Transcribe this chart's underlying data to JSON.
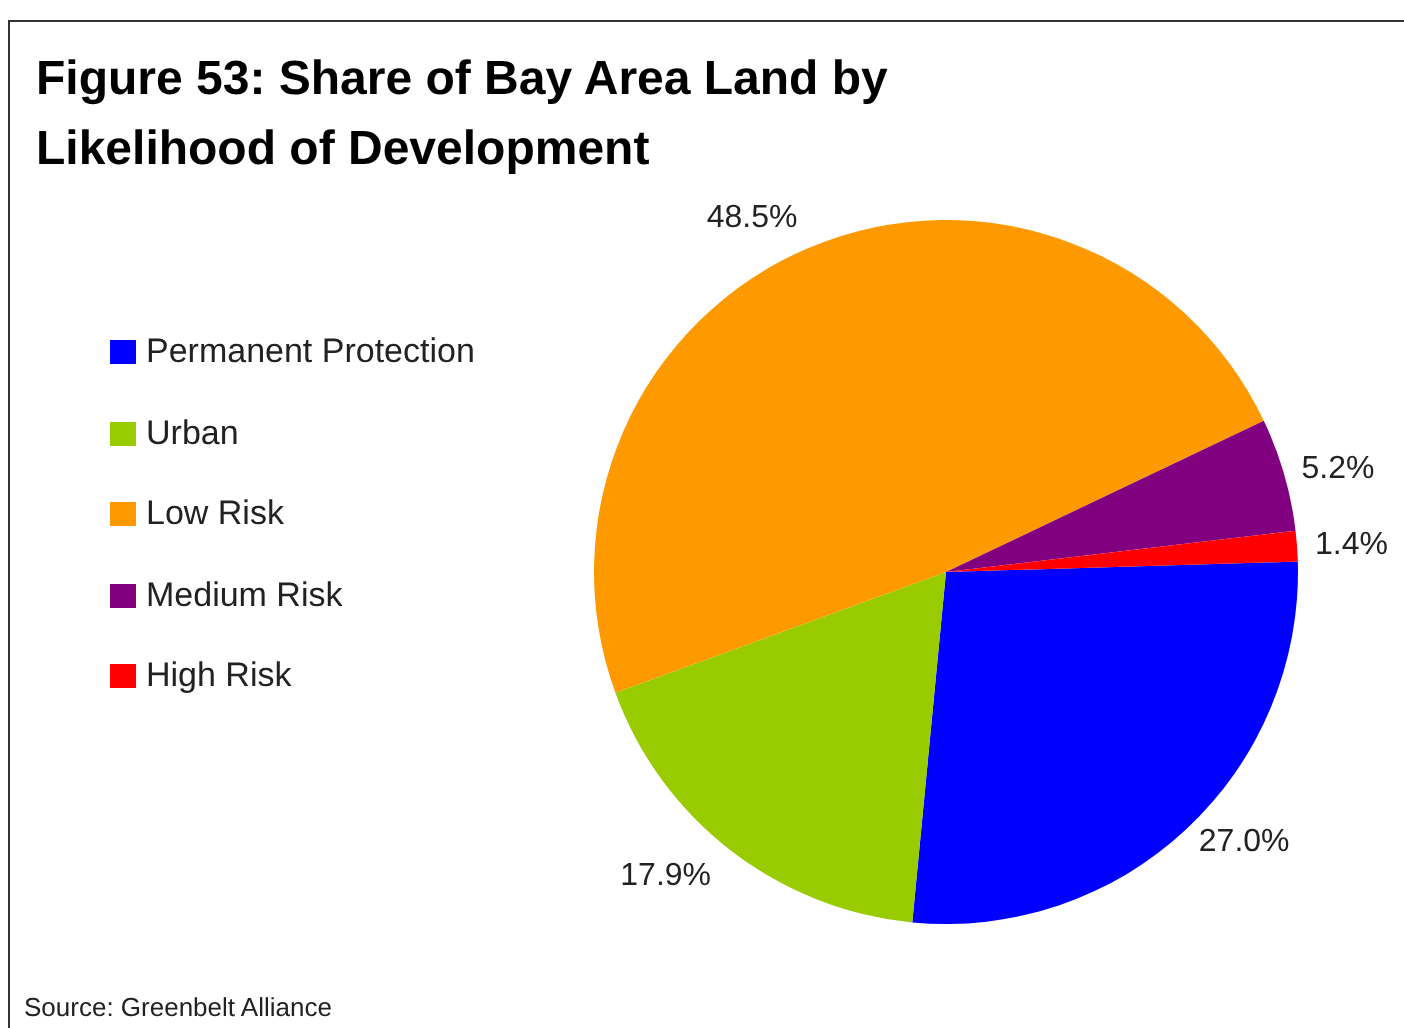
{
  "chart_data": {
    "type": "pie",
    "title": "Figure 53: Share of Bay Area Land by Likelihood of Development",
    "categories": [
      "Permanent Protection",
      "Urban",
      "Low Risk",
      "Medium Risk",
      "High Risk"
    ],
    "values": [
      27.0,
      17.9,
      48.5,
      5.2,
      1.4
    ],
    "value_labels": [
      "27.0%",
      "17.9%",
      "48.5%",
      "5.2%",
      "1.4%"
    ],
    "colors": [
      "#0000ff",
      "#99cc00",
      "#ff9900",
      "#800080",
      "#ff0000"
    ],
    "legend": "left",
    "annotations": [
      "Source: Greenbelt Alliance"
    ]
  }
}
